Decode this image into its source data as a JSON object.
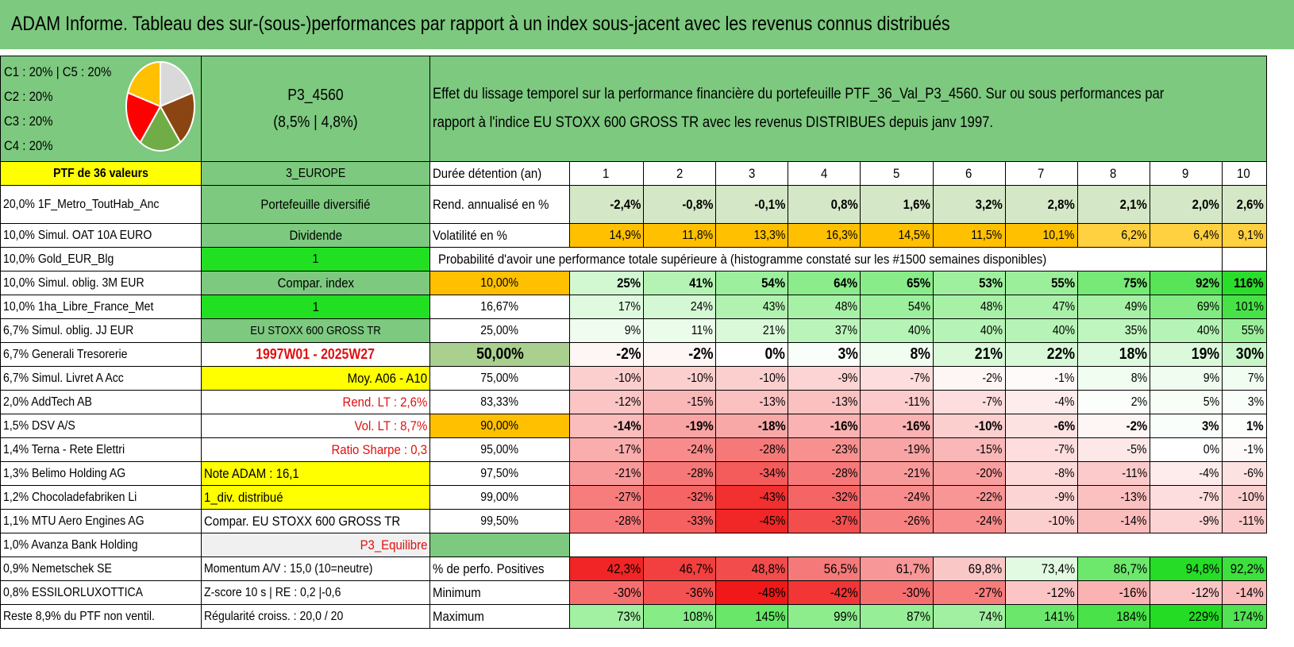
{
  "title": "ADAM Informe. Tableau des sur-(sous-)performances par rapport à un index sous-jacent avec les revenus connus distribués",
  "allocation_legend": {
    "lines": [
      "C1 : 20% | C5 : 20%",
      "C2 : 20%",
      "C3 : 20%",
      "C4 : 20%"
    ],
    "pie": [
      {
        "label": "C1",
        "value": 20,
        "color": "#d9d9d9"
      },
      {
        "label": "C2",
        "value": 20,
        "color": "#8b4513"
      },
      {
        "label": "C3",
        "value": 20,
        "color": "#70ad47"
      },
      {
        "label": "C4",
        "value": 20,
        "color": "#ff0000"
      },
      {
        "label": "C5",
        "value": 20,
        "color": "#ffc000"
      }
    ]
  },
  "portfolio": {
    "name": "P3_4560",
    "stats": "(8,5% | 4,8%)",
    "description_line1": "Effet du lissage temporel sur la performance financière du portefeuille PTF_36_Val_P3_4560. Sur ou sous performances par",
    "description_line2": "rapport à l'indice EU STOXX 600 GROSS TR avec les revenus DISTRIBUES depuis janv 1997.",
    "count_label": "PTF de 36 valeurs",
    "region": "3_EUROPE"
  },
  "holdings": [
    "20,0% 1F_Metro_ToutHab_Anc",
    "10,0% Simul. OAT 10A EURO",
    "10,0% Gold_EUR_Blg",
    "10,0% Simul. oblig. 3M EUR",
    "10,0% 1ha_Libre_France_Met",
    "6,7% Simul. oblig. JJ EUR",
    "6,7% Generali Tresorerie",
    "6,7% Simul. Livret A Acc",
    "2,0% AddTech AB",
    "1,5% DSV A/S",
    "1,4% Terna - Rete Elettri",
    "1,3% Belimo Holding AG",
    "1,2% Chocoladefabriken Li",
    "1,1% MTU Aero Engines AG",
    "1,0% Avanza Bank Holding",
    "0,9% Nemetschek SE",
    "0,8% ESSILORLUXOTTICA",
    "Reste 8,9% du PTF non ventil."
  ],
  "info_column": [
    "Portefeuille diversifié",
    "Dividende",
    "1",
    "Compar. index",
    "1",
    "EU STOXX 600 GROSS TR",
    "1997W01 - 2025W27",
    "Moy. A06 - A10",
    "Rend. LT : 2,6%",
    "Vol. LT : 8,7%",
    "Ratio Sharpe : 0,3",
    "Note ADAM : 16,1",
    "1_div. distribué",
    "Compar. EU STOXX 600 GROSS TR",
    "P3_Equilibre",
    "Momentum A/V : 15,0 (10=neutre)",
    "Z-score 10 s | RE : 0,2 |-0,6",
    "Régularité croiss. : 20,0 / 20"
  ],
  "table": {
    "duration_label": "Durée détention (an)",
    "years": [
      "1",
      "2",
      "3",
      "4",
      "5",
      "6",
      "7",
      "8",
      "9",
      "10"
    ],
    "rend_label": "Rend. annualisé en %",
    "rend": [
      "-2,4%",
      "-0,8%",
      "-0,1%",
      "0,8%",
      "1,6%",
      "3,2%",
      "2,8%",
      "2,1%",
      "2,0%",
      "2,6%"
    ],
    "vol_label": "Volatilité en %",
    "vol": [
      "14,9%",
      "11,8%",
      "13,3%",
      "16,3%",
      "14,5%",
      "11,5%",
      "10,1%",
      "6,2%",
      "6,4%",
      "9,1%"
    ],
    "prob_header": "Probabilité d'avoir une performance totale supérieure à (histogramme constaté sur les #1500 semaines disponibles)",
    "prob_rows": [
      {
        "p": "10,00%",
        "vals": [
          "25%",
          "41%",
          "54%",
          "64%",
          "65%",
          "53%",
          "55%",
          "75%",
          "92%",
          "116%"
        ]
      },
      {
        "p": "16,67%",
        "vals": [
          "17%",
          "24%",
          "43%",
          "48%",
          "54%",
          "48%",
          "47%",
          "49%",
          "69%",
          "101%"
        ]
      },
      {
        "p": "25,00%",
        "vals": [
          "9%",
          "11%",
          "21%",
          "37%",
          "40%",
          "40%",
          "40%",
          "35%",
          "40%",
          "55%"
        ]
      },
      {
        "p": "50,00%",
        "vals": [
          "-2%",
          "-2%",
          "0%",
          "3%",
          "8%",
          "21%",
          "22%",
          "18%",
          "19%",
          "30%"
        ]
      },
      {
        "p": "75,00%",
        "vals": [
          "-10%",
          "-10%",
          "-10%",
          "-9%",
          "-7%",
          "-2%",
          "-1%",
          "8%",
          "9%",
          "7%"
        ]
      },
      {
        "p": "83,33%",
        "vals": [
          "-12%",
          "-15%",
          "-13%",
          "-13%",
          "-11%",
          "-7%",
          "-4%",
          "2%",
          "5%",
          "3%"
        ]
      },
      {
        "p": "90,00%",
        "vals": [
          "-14%",
          "-19%",
          "-18%",
          "-16%",
          "-16%",
          "-10%",
          "-6%",
          "-2%",
          "3%",
          "1%"
        ]
      },
      {
        "p": "95,00%",
        "vals": [
          "-17%",
          "-24%",
          "-28%",
          "-23%",
          "-19%",
          "-15%",
          "-7%",
          "-5%",
          "0%",
          "-1%"
        ]
      },
      {
        "p": "97,50%",
        "vals": [
          "-21%",
          "-28%",
          "-34%",
          "-28%",
          "-21%",
          "-20%",
          "-8%",
          "-11%",
          "-4%",
          "-6%"
        ]
      },
      {
        "p": "99,00%",
        "vals": [
          "-27%",
          "-32%",
          "-43%",
          "-32%",
          "-24%",
          "-22%",
          "-9%",
          "-13%",
          "-7%",
          "-10%"
        ]
      },
      {
        "p": "99,50%",
        "vals": [
          "-28%",
          "-33%",
          "-45%",
          "-37%",
          "-26%",
          "-24%",
          "-10%",
          "-14%",
          "-9%",
          "-11%"
        ]
      }
    ],
    "pos_label": "% de perfo. Positives",
    "pos": [
      "42,3%",
      "46,7%",
      "48,8%",
      "56,5%",
      "61,7%",
      "69,8%",
      "73,4%",
      "86,7%",
      "94,8%",
      "92,2%"
    ],
    "min_label": "Minimum",
    "min": [
      "-30%",
      "-36%",
      "-48%",
      "-42%",
      "-30%",
      "-27%",
      "-12%",
      "-16%",
      "-12%",
      "-14%"
    ],
    "max_label": "Maximum",
    "max": [
      "73%",
      "108%",
      "145%",
      "99%",
      "87%",
      "74%",
      "141%",
      "184%",
      "229%",
      "174%"
    ]
  },
  "colors": {
    "header_green": "#7dc97f",
    "highlight_yellow": "#ffff00",
    "highlight_lime": "#21e021",
    "highlight_orange": "#ffc000",
    "negative_red": "#e01010"
  }
}
